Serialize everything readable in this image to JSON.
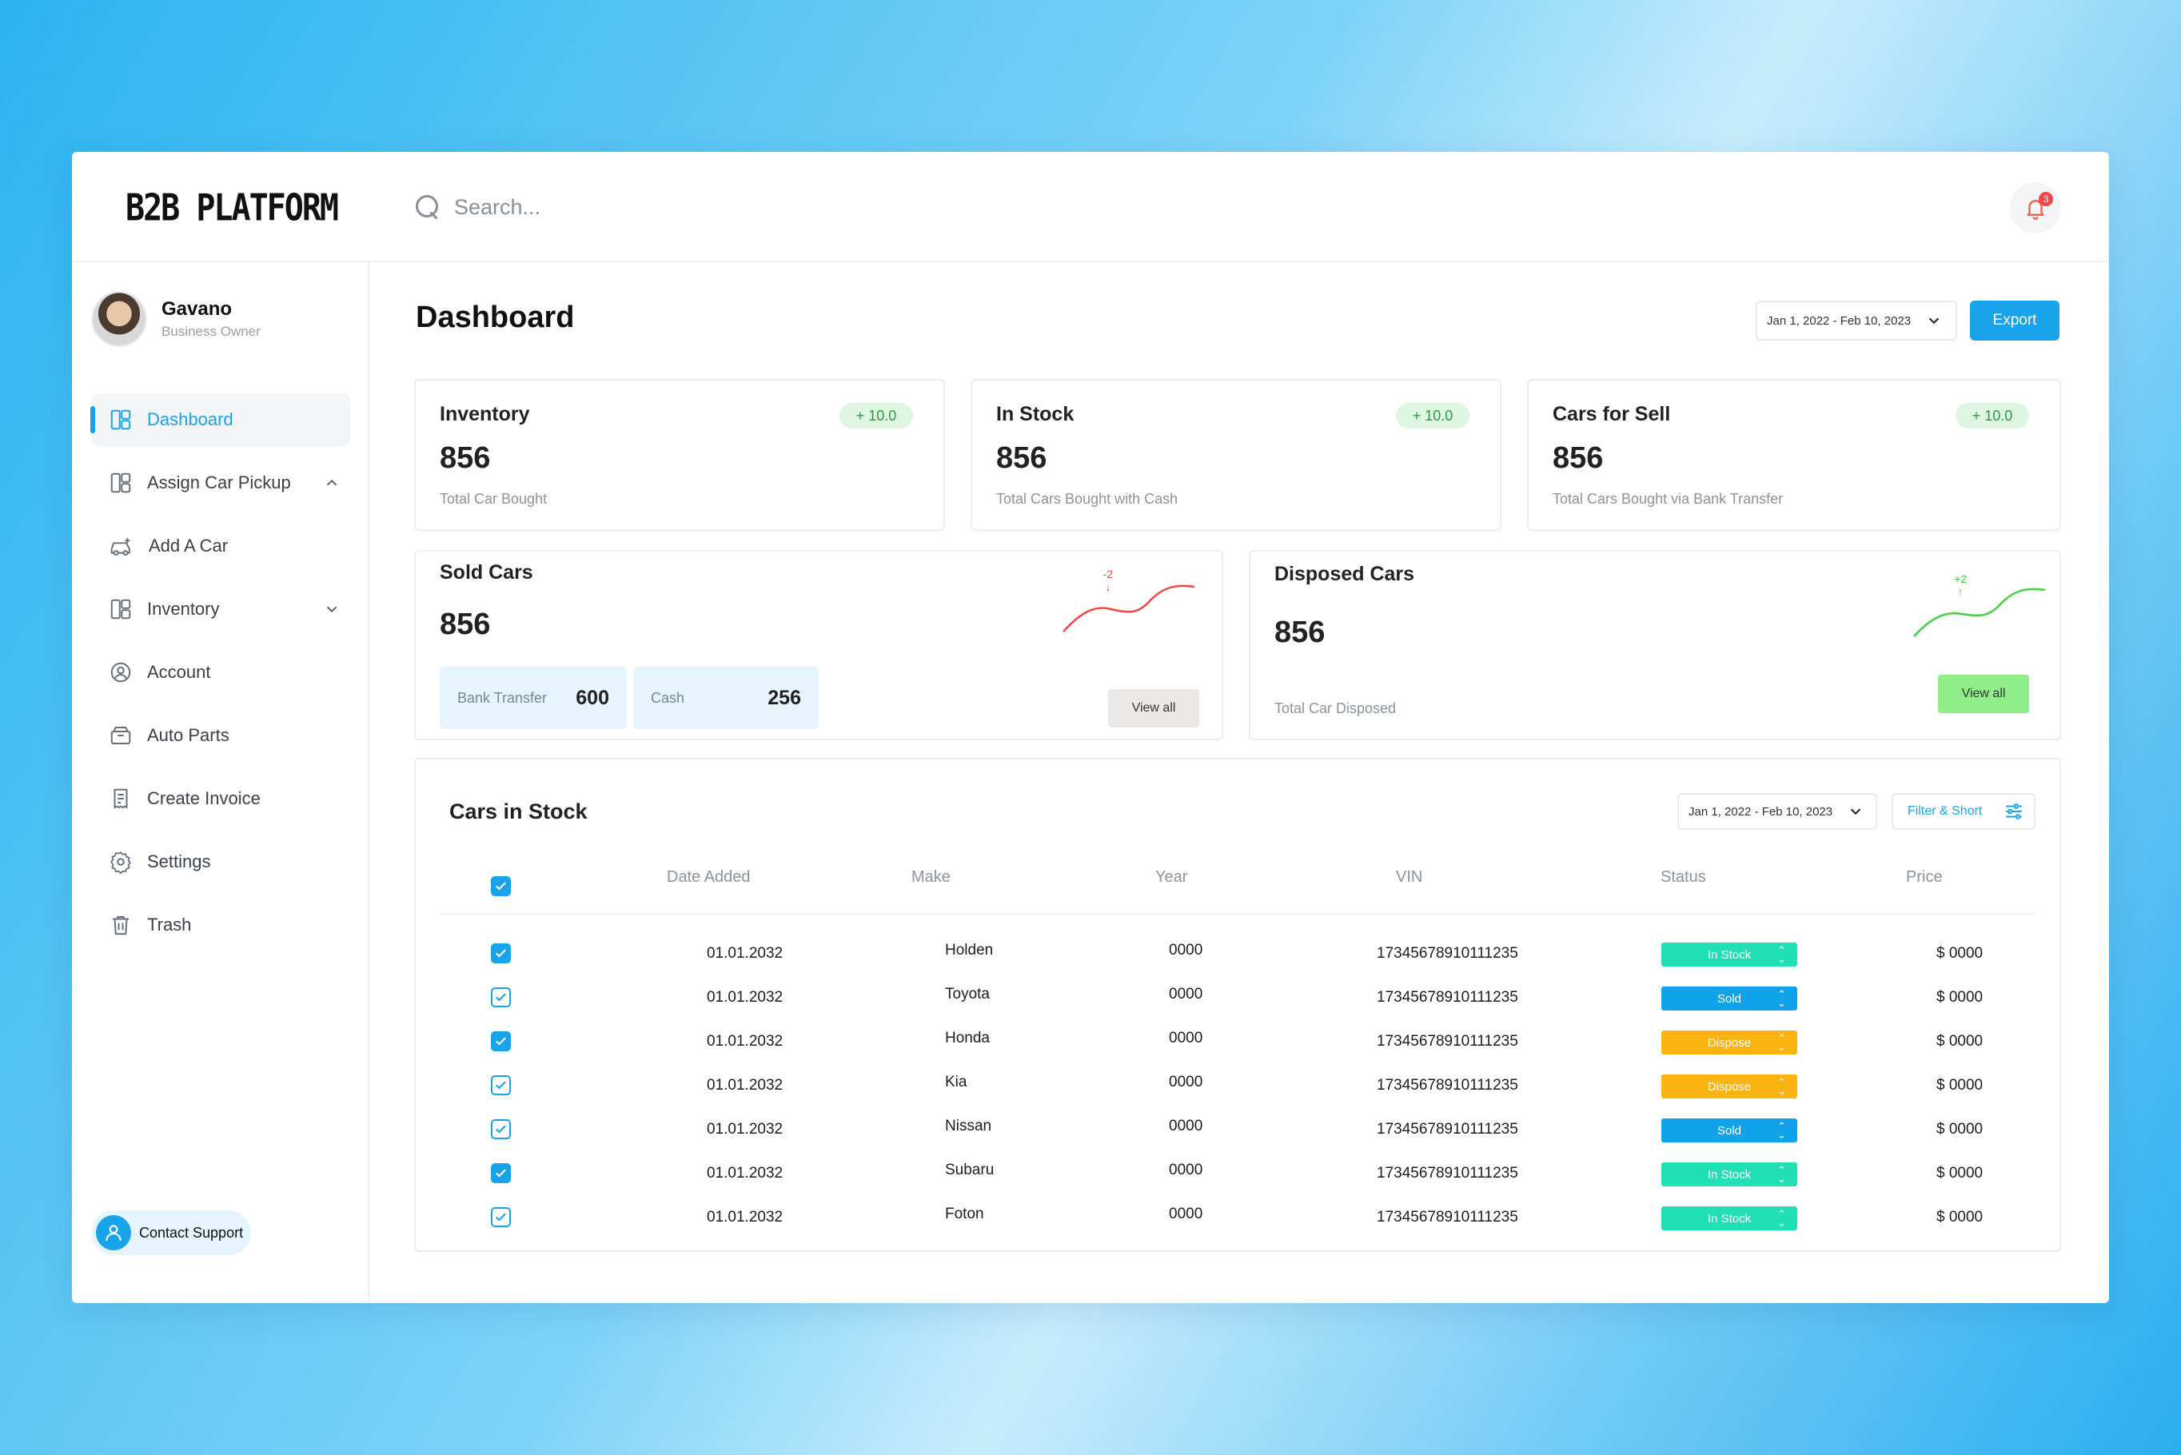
{
  "app": {
    "logo": "B2B PLATFORM"
  },
  "search": {
    "placeholder": "Search..."
  },
  "notifications": {
    "count": "3"
  },
  "profile": {
    "name": "Gavano",
    "role": "Business Owner"
  },
  "sidebar": {
    "items": [
      {
        "label": "Dashboard",
        "icon": "dashboard-icon",
        "active": true
      },
      {
        "label": "Assign Car Pickup",
        "icon": "dashboard-icon",
        "chevron": "up"
      },
      {
        "label": "Add A Car",
        "icon": "car-icon"
      },
      {
        "label": "Inventory",
        "icon": "dashboard-icon",
        "chevron": "down"
      },
      {
        "label": "Account",
        "icon": "user-circle-icon"
      },
      {
        "label": "Auto Parts",
        "icon": "box-icon"
      },
      {
        "label": "Create Invoice",
        "icon": "invoice-icon"
      },
      {
        "label": "Settings",
        "icon": "gear-icon"
      },
      {
        "label": "Trash",
        "icon": "trash-icon"
      }
    ],
    "contact_support": "Contact Support"
  },
  "header": {
    "title": "Dashboard",
    "date_range": "Jan 1, 2022 - Feb 10, 2023",
    "export_label": "Export"
  },
  "stats": [
    {
      "title": "Inventory",
      "value": "856",
      "sub": "Total Car Bought",
      "delta": "+ 10.0"
    },
    {
      "title": "In Stock",
      "value": "856",
      "sub": "Total Cars Bought with Cash",
      "delta": "+ 10.0"
    },
    {
      "title": "Cars for Sell",
      "value": "856",
      "sub": "Total Cars Bought via Bank Transfer",
      "delta": "+ 10.0"
    }
  ],
  "sold": {
    "title": "Sold Cars",
    "value": "856",
    "bank_label": "Bank Transfer",
    "bank_value": "600",
    "cash_label": "Cash",
    "cash_value": "256",
    "trend": "-2",
    "trend_arrow": "↓",
    "view_all": "View all"
  },
  "disposed": {
    "title": "Disposed Cars",
    "value": "856",
    "sub": "Total Car Disposed",
    "trend": "+2",
    "trend_arrow": "↑",
    "view_all": "View all"
  },
  "table": {
    "title": "Cars in Stock",
    "date_range": "Jan 1, 2022 - Feb 10, 2023",
    "filter_label": "Filter & Short",
    "columns": [
      "Date Added",
      "Make",
      "Year",
      "VIN",
      "Status",
      "Price"
    ],
    "rows": [
      {
        "checked_style": "filled",
        "date": "01.01.2032",
        "make": "Holden",
        "year": "0000",
        "vin": "17345678910111235",
        "status": "In Stock",
        "price": "$ 0000"
      },
      {
        "checked_style": "outline",
        "date": "01.01.2032",
        "make": "Toyota",
        "year": "0000",
        "vin": "17345678910111235",
        "status": "Sold",
        "price": "$ 0000"
      },
      {
        "checked_style": "filled",
        "date": "01.01.2032",
        "make": "Honda",
        "year": "0000",
        "vin": "17345678910111235",
        "status": "Dispose",
        "price": "$ 0000"
      },
      {
        "checked_style": "outline",
        "date": "01.01.2032",
        "make": "Kia",
        "year": "0000",
        "vin": "17345678910111235",
        "status": "Dispose",
        "price": "$ 0000"
      },
      {
        "checked_style": "outline",
        "date": "01.01.2032",
        "make": "Nissan",
        "year": "0000",
        "vin": "17345678910111235",
        "status": "Sold",
        "price": "$ 0000"
      },
      {
        "checked_style": "filled",
        "date": "01.01.2032",
        "make": "Subaru",
        "year": "0000",
        "vin": "17345678910111235",
        "status": "In Stock",
        "price": "$ 0000"
      },
      {
        "checked_style": "outline",
        "date": "01.01.2032",
        "make": "Foton",
        "year": "0000",
        "vin": "17345678910111235",
        "status": "In Stock",
        "price": "$ 0000"
      }
    ]
  },
  "colors": {
    "accent": "#19a3ea",
    "in_stock": "#22e0b5",
    "sold": "#11a3ea",
    "dispose": "#fbb412",
    "trend_down": "#f04848",
    "trend_up": "#45d045"
  }
}
